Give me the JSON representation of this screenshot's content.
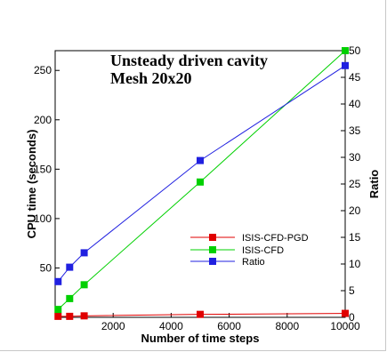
{
  "chart_data": {
    "type": "line",
    "title": "Unsteady driven cavity",
    "subtitle": "Mesh 20x20",
    "xlabel": "Number of time steps",
    "ylabel_left": "CPU time (seconds)",
    "ylabel_right": "Ratio",
    "xlim": [
      0,
      10000
    ],
    "ylim_left": [
      0,
      270
    ],
    "ylim_right": [
      0,
      50
    ],
    "x_ticks": [
      2000,
      4000,
      6000,
      8000,
      10000
    ],
    "y_left_ticks": [
      50,
      100,
      150,
      200,
      250
    ],
    "y_right_ticks": [
      0,
      5,
      10,
      15,
      20,
      25,
      30,
      35,
      40,
      45,
      50
    ],
    "grid": false,
    "legend_position": "lower-right",
    "series": [
      {
        "name": "ISIS-CFD-PGD",
        "axis": "left",
        "color": "#e00000",
        "x": [
          100,
          500,
          1000,
          5000,
          10000
        ],
        "y": [
          1,
          1,
          1.5,
          3,
          4
        ]
      },
      {
        "name": "ISIS-CFD",
        "axis": "left",
        "color": "#00d000",
        "x": [
          100,
          500,
          1000,
          5000,
          10000
        ],
        "y": [
          8,
          19,
          33,
          137,
          270
        ]
      },
      {
        "name": "Ratio",
        "axis": "right",
        "color": "#2020e0",
        "x": [
          100,
          500,
          1000,
          5000,
          10000
        ],
        "y": [
          6.7,
          9.4,
          12.1,
          29.4,
          47.2
        ]
      }
    ]
  }
}
